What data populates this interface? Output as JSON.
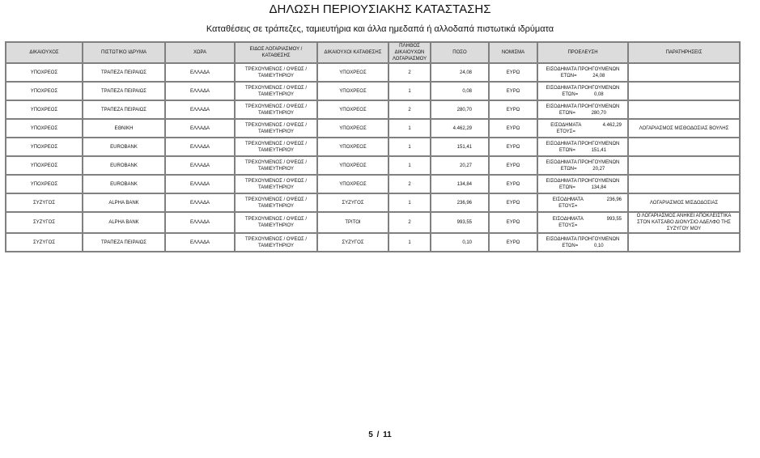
{
  "title": "ΔΗΛΩΣΗ ΠΕΡΙΟΥΣΙΑΚΗΣ ΚΑΤΑΣΤΑΣΗΣ",
  "subtitle": "Καταθέσεις σε τράπεζες, ταμιευτήρια και άλλα ημεδαπά ή αλλοδαπά πιστωτικά ιδρύματα",
  "table": {
    "headers": [
      "ΔΙΚΑΙΟΥΧΟΣ",
      "ΠΙΣΤΩΤΙΚΟ ΙΔΡΥΜΑ",
      "ΧΩΡΑ",
      "ΕΙΔΟΣ ΛΟΓΑΡΙΑΣΜΟΥ / ΚΑΤΑΘΕΣΗΣ",
      "ΔΙΚΑΙΟΥΧΟΙ ΚΑΤΑΘΕΣΗΣ",
      "ΠΛΗΘΟΣ ΔΙΚΑΙΟΥΧΩΝ ΛΟΓΑΡΙΑΣΜΟΥ",
      "ΠΟΣΟ",
      "ΝΟΜΙΣΜΑ",
      "ΠΡΟΕΛΕΥΣΗ",
      "ΠΑΡΑΤΗΡΗΣΕΙΣ"
    ],
    "rows": [
      {
        "beneficiary": "ΥΠΟΧΡΕΟΣ",
        "institution": "ΤΡΑΠΕΖΑ ΠΕΙΡΑΙΩΣ",
        "country": "ΕΛΛΑΔΑ",
        "type": "ΤΡΕΧΟΥΜΕΝΟΣ / ΟΨΕΩΣ / ΤΑΜΙΕΥΤΗΡΙΟΥ",
        "holders": "ΥΠΟΧΡΕΟΣ",
        "count": "2",
        "amount": "24,08",
        "currency": "ΕΥΡΩ",
        "origin_label": "ΕΙΣΟΔΗΜΑΤΑ ΠΡΟΗΓΟΥΜΕΝΩΝ ΕΤΩΝ=",
        "origin_amount": "24,08",
        "notes": ""
      },
      {
        "beneficiary": "ΥΠΟΧΡΕΟΣ",
        "institution": "ΤΡΑΠΕΖΑ ΠΕΙΡΑΙΩΣ",
        "country": "ΕΛΛΑΔΑ",
        "type": "ΤΡΕΧΟΥΜΕΝΟΣ / ΟΨΕΩΣ / ΤΑΜΙΕΥΤΗΡΙΟΥ",
        "holders": "ΥΠΟΧΡΕΟΣ",
        "count": "1",
        "amount": "0,08",
        "currency": "ΕΥΡΩ",
        "origin_label": "ΕΙΣΟΔΗΜΑΤΑ ΠΡΟΗΓΟΥΜΕΝΩΝ ΕΤΩΝ=",
        "origin_amount": "0,08",
        "notes": ""
      },
      {
        "beneficiary": "ΥΠΟΧΡΕΟΣ",
        "institution": "ΤΡΑΠΕΖΑ ΠΕΙΡΑΙΩΣ",
        "country": "ΕΛΛΑΔΑ",
        "type": "ΤΡΕΧΟΥΜΕΝΟΣ / ΟΨΕΩΣ / ΤΑΜΙΕΥΤΗΡΙΟΥ",
        "holders": "ΥΠΟΧΡΕΟΣ",
        "count": "2",
        "amount": "280,70",
        "currency": "ΕΥΡΩ",
        "origin_label": "ΕΙΣΟΔΗΜΑΤΑ ΠΡΟΗΓΟΥΜΕΝΩΝ ΕΤΩΝ=",
        "origin_amount": "280,70",
        "notes": ""
      },
      {
        "beneficiary": "ΥΠΟΧΡΕΟΣ",
        "institution": "ΕΘΝΙΚΗ",
        "country": "ΕΛΛΑΔΑ",
        "type": "ΤΡΕΧΟΥΜΕΝΟΣ / ΟΨΕΩΣ / ΤΑΜΙΕΥΤΗΡΙΟΥ",
        "holders": "ΥΠΟΧΡΕΟΣ",
        "count": "1",
        "amount": "4.462,29",
        "currency": "ΕΥΡΩ",
        "origin_label": "ΕΙΣΟΔΗΜΑΤΑ ΕΤΟΥΣ=",
        "origin_amount": "4.462,29",
        "notes": "ΛΟΓΑΡΙΑΣΜΟΣ ΜΙΣΘΟΔΟΣΙΑΣ ΒΟΥΛΗΣ"
      },
      {
        "beneficiary": "ΥΠΟΧΡΕΟΣ",
        "institution": "EUROBANK",
        "country": "ΕΛΛΑΔΑ",
        "type": "ΤΡΕΧΟΥΜΕΝΟΣ / ΟΨΕΩΣ / ΤΑΜΙΕΥΤΗΡΙΟΥ",
        "holders": "ΥΠΟΧΡΕΟΣ",
        "count": "1",
        "amount": "151,41",
        "currency": "ΕΥΡΩ",
        "origin_label": "ΕΙΣΟΔΗΜΑΤΑ ΠΡΟΗΓΟΥΜΕΝΩΝ ΕΤΩΝ=",
        "origin_amount": "151,41",
        "notes": ""
      },
      {
        "beneficiary": "ΥΠΟΧΡΕΟΣ",
        "institution": "EUROBANK",
        "country": "ΕΛΛΑΔΑ",
        "type": "ΤΡΕΧΟΥΜΕΝΟΣ / ΟΨΕΩΣ / ΤΑΜΙΕΥΤΗΡΙΟΥ",
        "holders": "ΥΠΟΧΡΕΟΣ",
        "count": "1",
        "amount": "20,27",
        "currency": "ΕΥΡΩ",
        "origin_label": "ΕΙΣΟΔΗΜΑΤΑ ΠΡΟΗΓΟΥΜΕΝΩΝ ΕΤΩΝ=",
        "origin_amount": "20,27",
        "notes": ""
      },
      {
        "beneficiary": "ΥΠΟΧΡΕΟΣ",
        "institution": "EUROBANK",
        "country": "ΕΛΛΑΔΑ",
        "type": "ΤΡΕΧΟΥΜΕΝΟΣ / ΟΨΕΩΣ / ΤΑΜΙΕΥΤΗΡΙΟΥ",
        "holders": "ΥΠΟΧΡΕΟΣ",
        "count": "2",
        "amount": "134,84",
        "currency": "ΕΥΡΩ",
        "origin_label": "ΕΙΣΟΔΗΜΑΤΑ ΠΡΟΗΓΟΥΜΕΝΩΝ ΕΤΩΝ=",
        "origin_amount": "134,84",
        "notes": ""
      },
      {
        "beneficiary": "ΣΥΖΥΓΟΣ",
        "institution": "ALPHA BANK",
        "country": "ΕΛΛΑΔΑ",
        "type": "ΤΡΕΧΟΥΜΕΝΟΣ / ΟΨΕΩΣ / ΤΑΜΙΕΥΤΗΡΙΟΥ",
        "holders": "ΣΥΖΥΓΟΣ",
        "count": "1",
        "amount": "236,96",
        "currency": "ΕΥΡΩ",
        "origin_label": "ΕΙΣΟΔΗΜΑΤΑ ΕΤΟΥΣ=",
        "origin_amount": "236,96",
        "notes": "ΛΟΓΑΡΙΑΣΜΟΣ ΜΙΣΔΟΔΟΣΙΑΣ"
      },
      {
        "beneficiary": "ΣΥΖΥΓΟΣ",
        "institution": "ALPHA BANK",
        "country": "ΕΛΛΑΔΑ",
        "type": "ΤΡΕΧΟΥΜΕΝΟΣ / ΟΨΕΩΣ / ΤΑΜΙΕΥΤΗΡΙΟΥ",
        "holders": "ΤΡΙΤΟΙ",
        "count": "2",
        "amount": "993,55",
        "currency": "ΕΥΡΩ",
        "origin_label": "ΕΙΣΟΔΗΜΑΤΑ ΕΤΟΥΣ=",
        "origin_amount": "993,55",
        "notes": "Ο ΛΟΓΑΡΙΑΣΜΟΣ ΑΝΗΚΕΙ ΑΠΟΚΛΕΙΣΤΙΚΑ ΣΤΟΝ ΚΑΤΣΑΒΟ ΔΙΟΝΥΣΙΟ ΑΔΕΛΦΟ ΤΗΣ ΣΥΖΥΓΟΥ ΜΟΥ"
      },
      {
        "beneficiary": "ΣΥΖΥΓΟΣ",
        "institution": "ΤΡΑΠΕΖΑ ΠΕΙΡΑΙΩΣ",
        "country": "ΕΛΛΑΔΑ",
        "type": "ΤΡΕΧΟΥΜΕΝΟΣ / ΟΨΕΩΣ / ΤΑΜΙΕΥΤΗΡΙΟΥ",
        "holders": "ΣΥΖΥΓΟΣ",
        "count": "1",
        "amount": "0,10",
        "currency": "ΕΥΡΩ",
        "origin_label": "ΕΙΣΟΔΗΜΑΤΑ ΠΡΟΗΓΟΥΜΕΝΩΝ ΕΤΩΝ=",
        "origin_amount": "0,10",
        "notes": ""
      }
    ]
  },
  "pager": {
    "current": "5",
    "separator": "/",
    "total": "11"
  }
}
